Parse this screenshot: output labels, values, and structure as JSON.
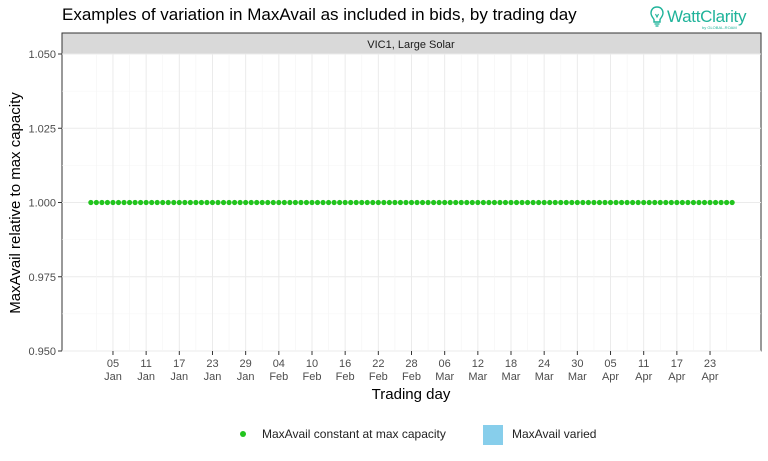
{
  "title": "Examples of variation in MaxAvail as included in bids, by trading day",
  "brand": {
    "name": "WattClarity",
    "byline": "by GLOBAL-ROAM",
    "icon": "lightbulb-icon",
    "color": "#1fb39a"
  },
  "chart_data": {
    "type": "scatter",
    "facet_label": "VIC1, Large Solar",
    "xlabel": "Trading day",
    "ylabel": "MaxAvail relative to max capacity",
    "ylim": [
      0.95,
      1.05
    ],
    "y_ticks": [
      "0.950",
      "0.975",
      "1.000",
      "1.025",
      "1.050"
    ],
    "x_ticks": [
      {
        "day": "05",
        "month": "Jan"
      },
      {
        "day": "11",
        "month": "Jan"
      },
      {
        "day": "17",
        "month": "Jan"
      },
      {
        "day": "23",
        "month": "Jan"
      },
      {
        "day": "29",
        "month": "Jan"
      },
      {
        "day": "04",
        "month": "Feb"
      },
      {
        "day": "10",
        "month": "Feb"
      },
      {
        "day": "16",
        "month": "Feb"
      },
      {
        "day": "22",
        "month": "Feb"
      },
      {
        "day": "28",
        "month": "Feb"
      },
      {
        "day": "06",
        "month": "Mar"
      },
      {
        "day": "12",
        "month": "Mar"
      },
      {
        "day": "18",
        "month": "Mar"
      },
      {
        "day": "24",
        "month": "Mar"
      },
      {
        "day": "30",
        "month": "Mar"
      },
      {
        "day": "05",
        "month": "Apr"
      },
      {
        "day": "11",
        "month": "Apr"
      },
      {
        "day": "17",
        "month": "Apr"
      },
      {
        "day": "23",
        "month": "Apr"
      }
    ],
    "x_range": [
      "01 Jan",
      "27 Apr"
    ],
    "series": [
      {
        "name": "MaxAvail constant at max capacity",
        "color": "#22c41e",
        "y": 1.0,
        "x_start": "01 Jan",
        "x_end": "27 Apr"
      }
    ],
    "legend": {
      "position": "bottom",
      "items": [
        {
          "label": "MaxAvail constant at max capacity",
          "marker": "dot",
          "color": "#22c41e"
        },
        {
          "label": "MaxAvail varied",
          "marker": "square",
          "color": "#87ceeb"
        }
      ]
    },
    "grid": true
  }
}
